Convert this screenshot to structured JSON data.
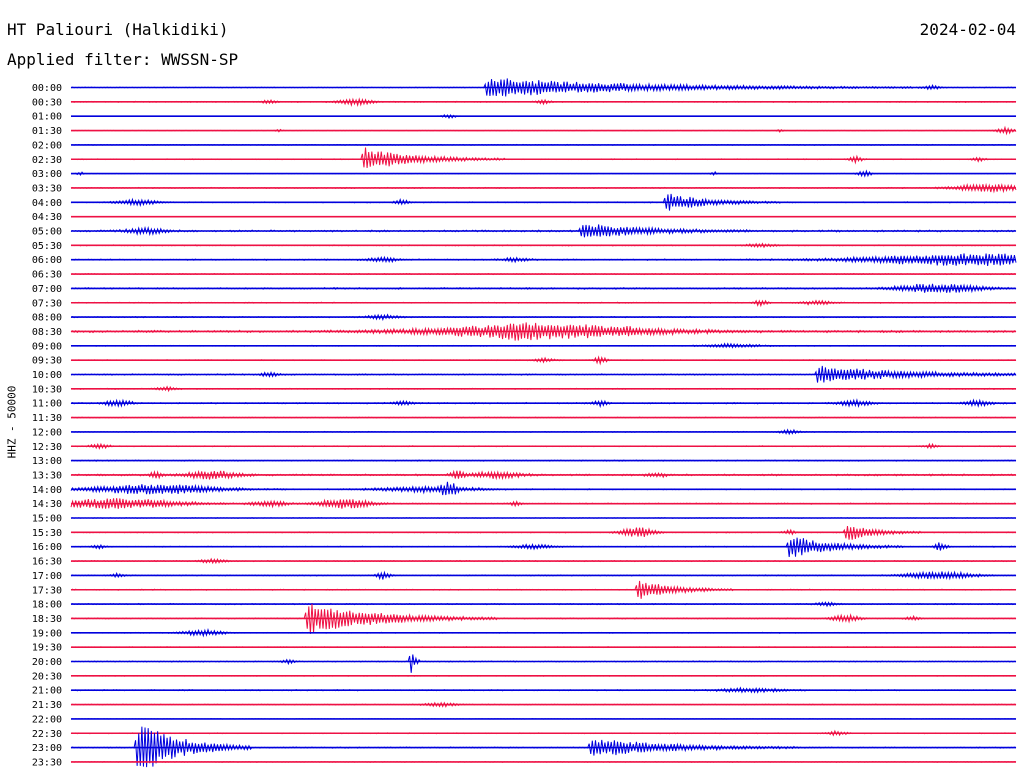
{
  "header": {
    "station": "HT Paliouri (Halkidiki)",
    "date": "2024-02-04",
    "filter": "Applied filter: WWSSN-SP"
  },
  "chart_data": {
    "type": "line",
    "title": "HT Paliouri (Halkidiki)",
    "date": "2024-02-04",
    "filter": "WWSSN-SP",
    "ylabel": "HHZ - 50000",
    "trace_colors": [
      "#0000dd",
      "#ee1144"
    ],
    "grid": false,
    "trace_minutes": 30,
    "rows": [
      {
        "label": "00:00",
        "noise": 0.25,
        "events": [
          [
            0.44,
            10,
            0.45,
            1
          ],
          [
            0.91,
            2,
            0.03,
            0
          ]
        ]
      },
      {
        "label": "00:30",
        "noise": 0.35,
        "events": [
          [
            0.3,
            3,
            0.05,
            0
          ],
          [
            0.21,
            2,
            0.02,
            0
          ],
          [
            0.5,
            2,
            0.02,
            0
          ]
        ]
      },
      {
        "label": "01:00",
        "noise": 0.15,
        "events": [
          [
            0.4,
            2,
            0.02,
            0
          ]
        ]
      },
      {
        "label": "01:30",
        "noise": 0.15,
        "events": [
          [
            0.99,
            3,
            0.03,
            0
          ],
          [
            0.22,
            1.5,
            0.01,
            0
          ],
          [
            0.75,
            1.5,
            0.01,
            0
          ]
        ]
      },
      {
        "label": "02:00",
        "noise": 0.3,
        "events": []
      },
      {
        "label": "02:30",
        "noise": 0.3,
        "events": [
          [
            0.31,
            12,
            0.15,
            1
          ],
          [
            0.83,
            3,
            0.02,
            0
          ],
          [
            0.96,
            2,
            0.02,
            0
          ]
        ]
      },
      {
        "label": "03:00",
        "noise": 0.15,
        "events": [
          [
            0.01,
            2,
            0.01,
            0
          ],
          [
            0.68,
            2,
            0.01,
            0
          ],
          [
            0.84,
            3,
            0.02,
            0
          ]
        ]
      },
      {
        "label": "03:30",
        "noise": 0.35,
        "events": [
          [
            0.97,
            4,
            0.1,
            0
          ]
        ]
      },
      {
        "label": "04:00",
        "noise": 0.35,
        "events": [
          [
            0.07,
            3,
            0.06,
            0
          ],
          [
            0.35,
            3,
            0.02,
            0
          ],
          [
            0.63,
            9,
            0.12,
            1
          ]
        ]
      },
      {
        "label": "04:30",
        "noise": 0.1,
        "events": []
      },
      {
        "label": "05:00",
        "noise": 0.6,
        "events": [
          [
            0.08,
            3,
            0.06,
            0
          ],
          [
            0.54,
            8,
            0.18,
            1
          ]
        ]
      },
      {
        "label": "05:30",
        "noise": 0.35,
        "events": [
          [
            0.73,
            2,
            0.04,
            0
          ]
        ]
      },
      {
        "label": "06:00",
        "noise": 0.45,
        "events": [
          [
            0.33,
            2,
            0.05,
            0
          ],
          [
            0.47,
            2,
            0.04,
            0
          ],
          [
            0.96,
            6,
            0.35,
            0
          ]
        ]
      },
      {
        "label": "06:30",
        "noise": 0.35,
        "events": []
      },
      {
        "label": "07:00",
        "noise": 0.55,
        "events": [
          [
            0.9,
            3,
            0.1,
            0
          ],
          [
            0.94,
            3,
            0.1,
            0
          ]
        ]
      },
      {
        "label": "07:30",
        "noise": 0.35,
        "events": [
          [
            0.73,
            3,
            0.02,
            0
          ],
          [
            0.79,
            2,
            0.05,
            0
          ]
        ]
      },
      {
        "label": "08:00",
        "noise": 0.4,
        "events": [
          [
            0.33,
            2,
            0.05,
            0
          ]
        ]
      },
      {
        "label": "08:30",
        "noise": 0.75,
        "events": [
          [
            0.5,
            7,
            0.35,
            0
          ],
          [
            0.48,
            2,
            0.08,
            0
          ]
        ]
      },
      {
        "label": "09:00",
        "noise": 0.3,
        "events": [
          [
            0.7,
            2,
            0.08,
            0
          ]
        ]
      },
      {
        "label": "09:30",
        "noise": 0.3,
        "events": [
          [
            0.5,
            2,
            0.03,
            0
          ],
          [
            0.56,
            3,
            0.02,
            0
          ]
        ]
      },
      {
        "label": "10:00",
        "noise": 0.45,
        "events": [
          [
            0.79,
            9,
            0.25,
            1
          ],
          [
            0.21,
            2,
            0.03,
            0
          ]
        ]
      },
      {
        "label": "10:30",
        "noise": 0.35,
        "events": [
          [
            0.1,
            2,
            0.03,
            0
          ]
        ]
      },
      {
        "label": "11:00",
        "noise": 0.45,
        "events": [
          [
            0.05,
            3,
            0.04,
            0
          ],
          [
            0.56,
            3,
            0.02,
            0
          ],
          [
            0.83,
            3,
            0.05,
            0
          ],
          [
            0.96,
            3,
            0.04,
            0
          ],
          [
            0.35,
            2,
            0.03,
            0
          ]
        ]
      },
      {
        "label": "11:30",
        "noise": 0.3,
        "events": []
      },
      {
        "label": "12:00",
        "noise": 0.3,
        "events": [
          [
            0.76,
            2,
            0.03,
            0
          ]
        ]
      },
      {
        "label": "12:30",
        "noise": 0.35,
        "events": [
          [
            0.03,
            2,
            0.03,
            0
          ],
          [
            0.91,
            2,
            0.02,
            0
          ]
        ]
      },
      {
        "label": "13:00",
        "noise": 0.4,
        "events": []
      },
      {
        "label": "13:30",
        "noise": 0.6,
        "events": [
          [
            0.09,
            3,
            0.02,
            0
          ],
          [
            0.15,
            4,
            0.08,
            0
          ],
          [
            0.41,
            5,
            0.02,
            0
          ],
          [
            0.45,
            3,
            0.08,
            0
          ],
          [
            0.62,
            2,
            0.03,
            0
          ]
        ]
      },
      {
        "label": "14:00",
        "noise": 0.35,
        "events": [
          [
            0.09,
            5,
            0.2,
            0
          ],
          [
            0.38,
            3,
            0.15,
            0
          ],
          [
            0.4,
            6,
            0.02,
            0
          ]
        ]
      },
      {
        "label": "14:30",
        "noise": 0.4,
        "events": [
          [
            0.05,
            5,
            0.2,
            0
          ],
          [
            0.29,
            5,
            0.08,
            0
          ],
          [
            0.21,
            3,
            0.05,
            0
          ],
          [
            0.47,
            2,
            0.02,
            0
          ]
        ]
      },
      {
        "label": "15:00",
        "noise": 0.25,
        "events": []
      },
      {
        "label": "15:30",
        "noise": 0.35,
        "events": [
          [
            0.6,
            5,
            0.05,
            0
          ],
          [
            0.82,
            9,
            0.08,
            1
          ],
          [
            0.76,
            2,
            0.02,
            0
          ]
        ]
      },
      {
        "label": "16:00",
        "noise": 0.35,
        "events": [
          [
            0.76,
            12,
            0.12,
            1
          ],
          [
            0.92,
            4,
            0.02,
            0
          ],
          [
            0.49,
            2,
            0.06,
            0
          ],
          [
            0.03,
            2,
            0.02,
            0
          ]
        ]
      },
      {
        "label": "16:30",
        "noise": 0.35,
        "events": [
          [
            0.15,
            2,
            0.04,
            0
          ]
        ]
      },
      {
        "label": "17:00",
        "noise": 0.35,
        "events": [
          [
            0.33,
            4,
            0.02,
            0
          ],
          [
            0.92,
            4,
            0.1,
            0
          ],
          [
            0.05,
            2,
            0.02,
            0
          ]
        ]
      },
      {
        "label": "17:30",
        "noise": 0.35,
        "events": [
          [
            0.6,
            10,
            0.1,
            1
          ]
        ]
      },
      {
        "label": "18:00",
        "noise": 0.4,
        "events": [
          [
            0.8,
            2,
            0.03,
            0
          ]
        ]
      },
      {
        "label": "18:30",
        "noise": 0.35,
        "events": [
          [
            0.25,
            16,
            0.2,
            1
          ],
          [
            0.82,
            4,
            0.04,
            0
          ],
          [
            0.89,
            2,
            0.02,
            0
          ]
        ]
      },
      {
        "label": "19:00",
        "noise": 0.3,
        "events": [
          [
            0.14,
            3,
            0.06,
            0
          ]
        ]
      },
      {
        "label": "19:30",
        "noise": 0.3,
        "events": []
      },
      {
        "label": "20:00",
        "noise": 0.35,
        "events": [
          [
            0.36,
            14,
            0.01,
            1
          ],
          [
            0.23,
            2,
            0.02,
            0
          ]
        ]
      },
      {
        "label": "20:30",
        "noise": 0.25,
        "events": []
      },
      {
        "label": "21:00",
        "noise": 0.4,
        "events": [
          [
            0.72,
            2,
            0.1,
            0
          ]
        ]
      },
      {
        "label": "21:30",
        "noise": 0.3,
        "events": [
          [
            0.39,
            2,
            0.05,
            0
          ]
        ]
      },
      {
        "label": "22:00",
        "noise": 0.15,
        "events": []
      },
      {
        "label": "22:30",
        "noise": 0.3,
        "events": [
          [
            0.81,
            2,
            0.03,
            0
          ]
        ]
      },
      {
        "label": "23:00",
        "noise": 0.4,
        "events": [
          [
            0.07,
            28,
            0.12,
            1
          ],
          [
            0.55,
            10,
            0.22,
            1
          ]
        ]
      },
      {
        "label": "23:30",
        "noise": 0.25,
        "events": []
      }
    ]
  }
}
